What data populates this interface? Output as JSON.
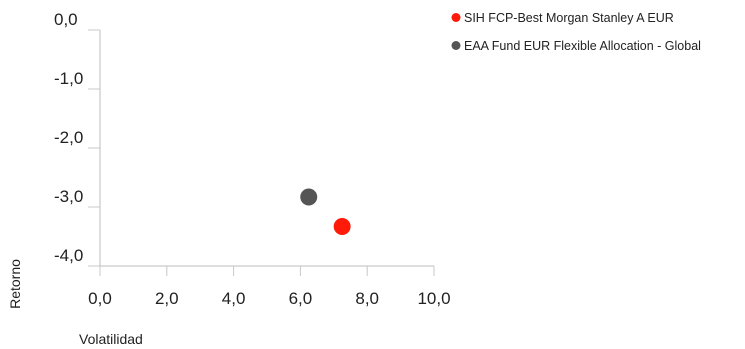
{
  "chart_data": {
    "type": "scatter",
    "xlabel": "Volatilidad",
    "ylabel": "Retorno",
    "xlim": [
      0,
      10
    ],
    "ylim": [
      -4,
      0
    ],
    "x_ticks": [
      "0,0",
      "2,0",
      "4,0",
      "6,0",
      "8,0",
      "10,0"
    ],
    "x_tick_values": [
      0,
      2,
      4,
      6,
      8,
      10
    ],
    "y_ticks": [
      "0,0",
      "-1,0",
      "-2,0",
      "-3,0",
      "-4,0"
    ],
    "y_tick_values": [
      0,
      -1,
      -2,
      -3,
      -4
    ],
    "grid": false,
    "legend_position": "top-right",
    "series": [
      {
        "name": "SIH FCP-Best Morgan Stanley A EUR",
        "color": "#ff1a0a",
        "points": [
          {
            "x": 7.25,
            "y": -3.33
          }
        ]
      },
      {
        "name": "EAA Fund EUR Flexible Allocation - Global",
        "color": "#555555",
        "points": [
          {
            "x": 6.25,
            "y": -2.83
          }
        ]
      }
    ]
  }
}
